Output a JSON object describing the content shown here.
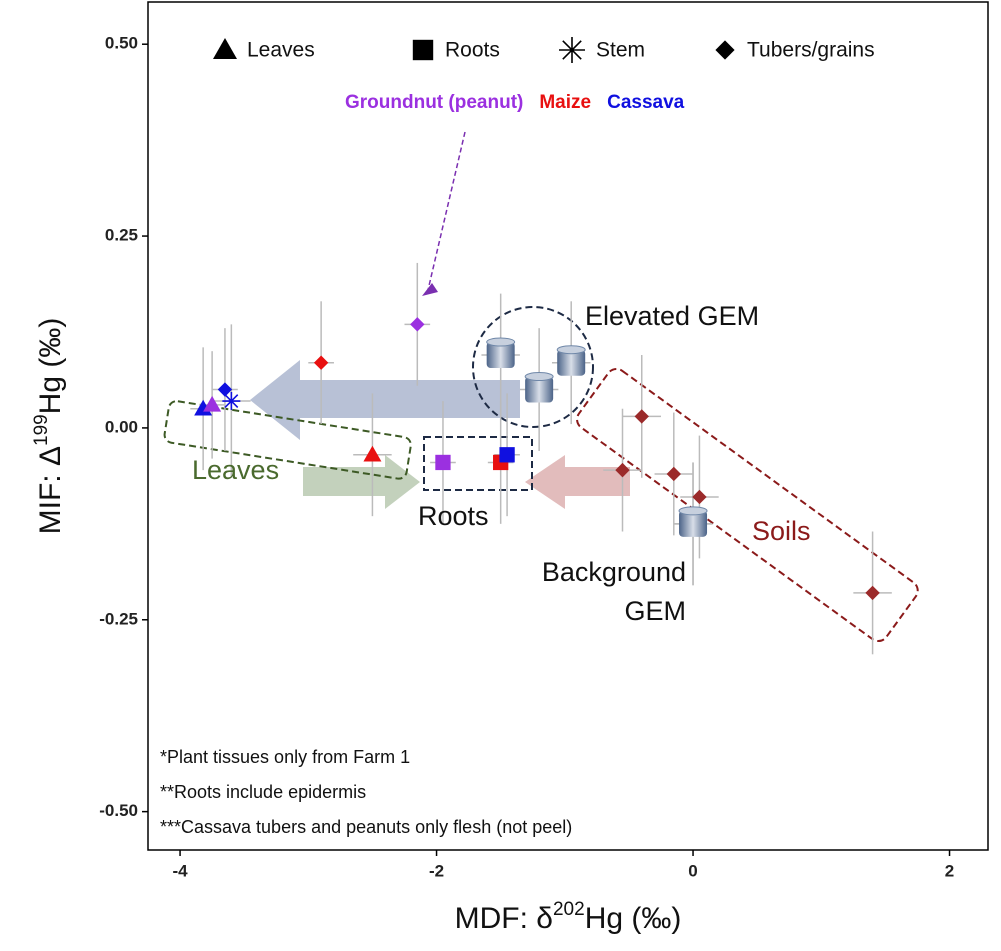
{
  "chart_data": {
    "type": "scatter",
    "x_label": [
      "MDF: δ",
      "202",
      "Hg (‰)"
    ],
    "y_label": [
      "MIF: Δ",
      "199",
      "Hg (‰)"
    ],
    "xlim": [
      -4.25,
      2.3
    ],
    "xticks": [
      -4,
      -2,
      0,
      2
    ],
    "ylim": [
      -0.55,
      0.555
    ],
    "yticks": [
      {
        "value": 0.5,
        "label": "0.50"
      },
      {
        "value": 0.25,
        "label": "0.25"
      },
      {
        "value": 0,
        "label": "0.00"
      },
      {
        "value": -0.25,
        "label": "-0.25"
      },
      {
        "value": -0.5,
        "label": "-0.50"
      }
    ],
    "legend_markers": [
      {
        "name": "Leaves",
        "marker": "triangle"
      },
      {
        "name": "Roots",
        "marker": "square"
      },
      {
        "name": "Stem",
        "marker": "star"
      },
      {
        "name": "Tubers/grains",
        "marker": "diamond"
      }
    ],
    "legend_colors": [
      {
        "name": "Groundnut (peanut)",
        "color": "#9b30e0"
      },
      {
        "name": "Maize",
        "color": "#e81010"
      },
      {
        "name": "Cassava",
        "color": "#1010e0"
      }
    ],
    "points": [
      {
        "marker": "triangle",
        "color": "#1010e0",
        "x": -3.82,
        "y": 0.025,
        "xerr": 0.1,
        "yerr": 0.08
      },
      {
        "marker": "triangle",
        "color": "#9b30e0",
        "x": -3.75,
        "y": 0.03,
        "xerr": 0.1,
        "yerr": 0.07
      },
      {
        "marker": "triangle",
        "color": "#e81010",
        "x": -2.5,
        "y": -0.035,
        "xerr": 0.15,
        "yerr": 0.08
      },
      {
        "marker": "star",
        "color": "#1010e0",
        "x": -3.6,
        "y": 0.035,
        "xerr": 0.15,
        "yerr": 0.1
      },
      {
        "marker": "square",
        "color": "#9b30e0",
        "x": -1.95,
        "y": -0.045,
        "xerr": 0.1,
        "yerr": 0.08
      },
      {
        "marker": "square",
        "color": "#e81010",
        "x": -1.5,
        "y": -0.045,
        "xerr": 0.1,
        "yerr": 0.08
      },
      {
        "marker": "square",
        "color": "#1010e0",
        "x": -1.45,
        "y": -0.035,
        "xerr": 0.1,
        "yerr": 0.08
      },
      {
        "marker": "diamond",
        "color": "#e81010",
        "x": -2.9,
        "y": 0.085,
        "xerr": 0.1,
        "yerr": 0.08
      },
      {
        "marker": "diamond",
        "color": "#9b30e0",
        "x": -2.15,
        "y": 0.135,
        "xerr": 0.1,
        "yerr": 0.08
      },
      {
        "marker": "diamond",
        "color": "#1010e0",
        "x": -3.65,
        "y": 0.05,
        "xerr": 0.1,
        "yerr": 0.08
      },
      {
        "marker": "diamond",
        "color": "#9b2a2a",
        "x": -0.55,
        "y": -0.055,
        "xerr": 0.15,
        "yerr": 0.08
      },
      {
        "marker": "diamond",
        "color": "#9b2a2a",
        "x": -0.4,
        "y": 0.015,
        "xerr": 0.15,
        "yerr": 0.08
      },
      {
        "marker": "diamond",
        "color": "#9b2a2a",
        "x": -0.15,
        "y": -0.06,
        "xerr": 0.15,
        "yerr": 0.08
      },
      {
        "marker": "diamond",
        "color": "#9b2a2a",
        "x": 0.05,
        "y": -0.09,
        "xerr": 0.15,
        "yerr": 0.08
      },
      {
        "marker": "diamond",
        "color": "#9b2a2a",
        "x": 0,
        "y": -0.125,
        "xerr": 0.15,
        "yerr": 0.08
      },
      {
        "marker": "diamond",
        "color": "#9b2a2a",
        "x": 1.4,
        "y": -0.215,
        "xerr": 0.15,
        "yerr": 0.08
      },
      {
        "marker": "gem",
        "color": "#6f87a8",
        "x": -1.5,
        "y": 0.095,
        "xerr": 0.15,
        "yerr": 0.08
      },
      {
        "marker": "gem",
        "color": "#6f87a8",
        "x": -1.2,
        "y": 0.05,
        "xerr": 0.15,
        "yerr": 0.08
      },
      {
        "marker": "gem",
        "color": "#6f87a8",
        "x": -0.95,
        "y": 0.085,
        "xerr": 0.15,
        "yerr": 0.08
      },
      {
        "marker": "gem",
        "color": "#6f87a8",
        "x": 0,
        "y": -0.125,
        "xerr": 0.15,
        "yerr": 0.08
      }
    ],
    "annotations": {
      "elevated": "Elevated GEM",
      "leaves": "Leaves",
      "roots": "Roots",
      "soils": "Soils",
      "background": [
        "Background",
        "GEM"
      ]
    },
    "notes": [
      "*Plant tissues only from Farm 1",
      "**Roots include epidermis",
      "***Cassava tubers and peanuts only flesh (not peel)"
    ]
  }
}
